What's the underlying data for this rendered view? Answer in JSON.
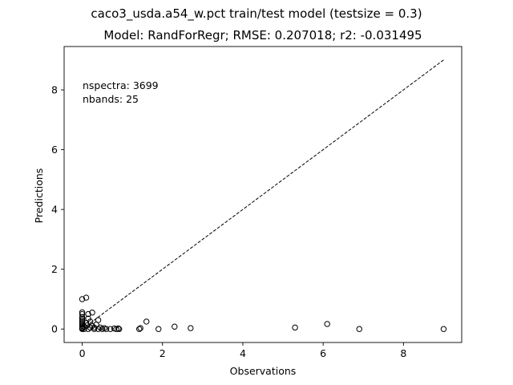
{
  "chart_data": {
    "type": "scatter",
    "suptitle": "caco3_usda.a54_w.pct train/test model (testsize = 0.3)",
    "title": "Model: RandForRegr; RMSE: 0.207018; r2: -0.031495",
    "xlabel": "Observations",
    "ylabel": "Predictions",
    "xlim": [
      -0.45,
      9.45
    ],
    "ylim": [
      -0.45,
      9.45
    ],
    "xticks": [
      0,
      2,
      4,
      6,
      8
    ],
    "yticks": [
      0,
      2,
      4,
      6,
      8
    ],
    "grid": false,
    "annotations": [
      "nspectra: 3699",
      "nbands: 25"
    ],
    "reference_line": {
      "style": "dashed",
      "from": [
        0,
        0
      ],
      "to": [
        9,
        9
      ],
      "color": "#000000"
    },
    "marker": {
      "shape": "circle",
      "fill": "none",
      "edge": "#000000"
    },
    "points": [
      [
        0.0,
        0.0
      ],
      [
        0.0,
        0.02
      ],
      [
        0.0,
        0.05
      ],
      [
        0.0,
        0.1
      ],
      [
        0.0,
        0.15
      ],
      [
        0.0,
        0.2
      ],
      [
        0.0,
        0.25
      ],
      [
        0.0,
        0.3
      ],
      [
        0.0,
        0.35
      ],
      [
        0.0,
        0.4
      ],
      [
        0.0,
        0.5
      ],
      [
        0.0,
        0.56
      ],
      [
        0.0,
        1.0
      ],
      [
        0.1,
        1.05
      ],
      [
        0.05,
        0.0
      ],
      [
        0.05,
        0.08
      ],
      [
        0.1,
        0.2
      ],
      [
        0.12,
        0.12
      ],
      [
        0.15,
        0.35
      ],
      [
        0.15,
        0.5
      ],
      [
        0.15,
        0.0
      ],
      [
        0.2,
        0.05
      ],
      [
        0.2,
        0.25
      ],
      [
        0.25,
        0.1
      ],
      [
        0.25,
        0.55
      ],
      [
        0.3,
        0.0
      ],
      [
        0.3,
        0.05
      ],
      [
        0.35,
        0.15
      ],
      [
        0.4,
        0.0
      ],
      [
        0.4,
        0.3
      ],
      [
        0.45,
        0.05
      ],
      [
        0.5,
        0.0
      ],
      [
        0.55,
        0.03
      ],
      [
        0.6,
        0.0
      ],
      [
        0.7,
        0.0
      ],
      [
        0.8,
        0.02
      ],
      [
        0.85,
        0.0
      ],
      [
        0.9,
        0.02
      ],
      [
        0.92,
        0.0
      ],
      [
        1.42,
        0.0
      ],
      [
        1.45,
        0.03
      ],
      [
        1.6,
        0.25
      ],
      [
        1.9,
        0.0
      ],
      [
        2.3,
        0.08
      ],
      [
        2.7,
        0.03
      ],
      [
        5.3,
        0.05
      ],
      [
        6.1,
        0.17
      ],
      [
        6.9,
        0.0
      ],
      [
        9.0,
        0.0
      ]
    ]
  }
}
